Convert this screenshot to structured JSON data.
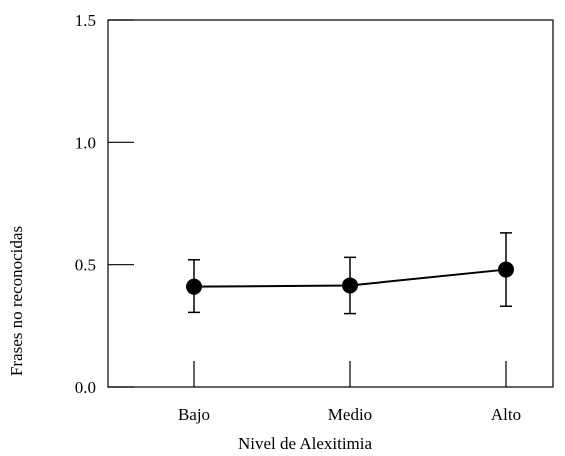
{
  "chart_data": {
    "type": "line",
    "title": "",
    "xlabel": "Nivel de Alexitimia",
    "ylabel": "Frases no reconocidas",
    "categories": [
      "Bajo",
      "Medio",
      "Alto"
    ],
    "series": [
      {
        "values": [
          0.41,
          0.415,
          0.48
        ],
        "error_low": [
          0.305,
          0.3,
          0.33
        ],
        "error_high": [
          0.52,
          0.53,
          0.63
        ],
        "marker": "filled-circle",
        "color": "#000000"
      }
    ],
    "ylim": [
      0.0,
      1.5
    ],
    "yticks": [
      0.0,
      0.5,
      1.0,
      1.5
    ],
    "ytick_labels": [
      "0.0",
      "0.5",
      "1.0",
      "1.5"
    ],
    "grid": false,
    "legend": "none"
  }
}
